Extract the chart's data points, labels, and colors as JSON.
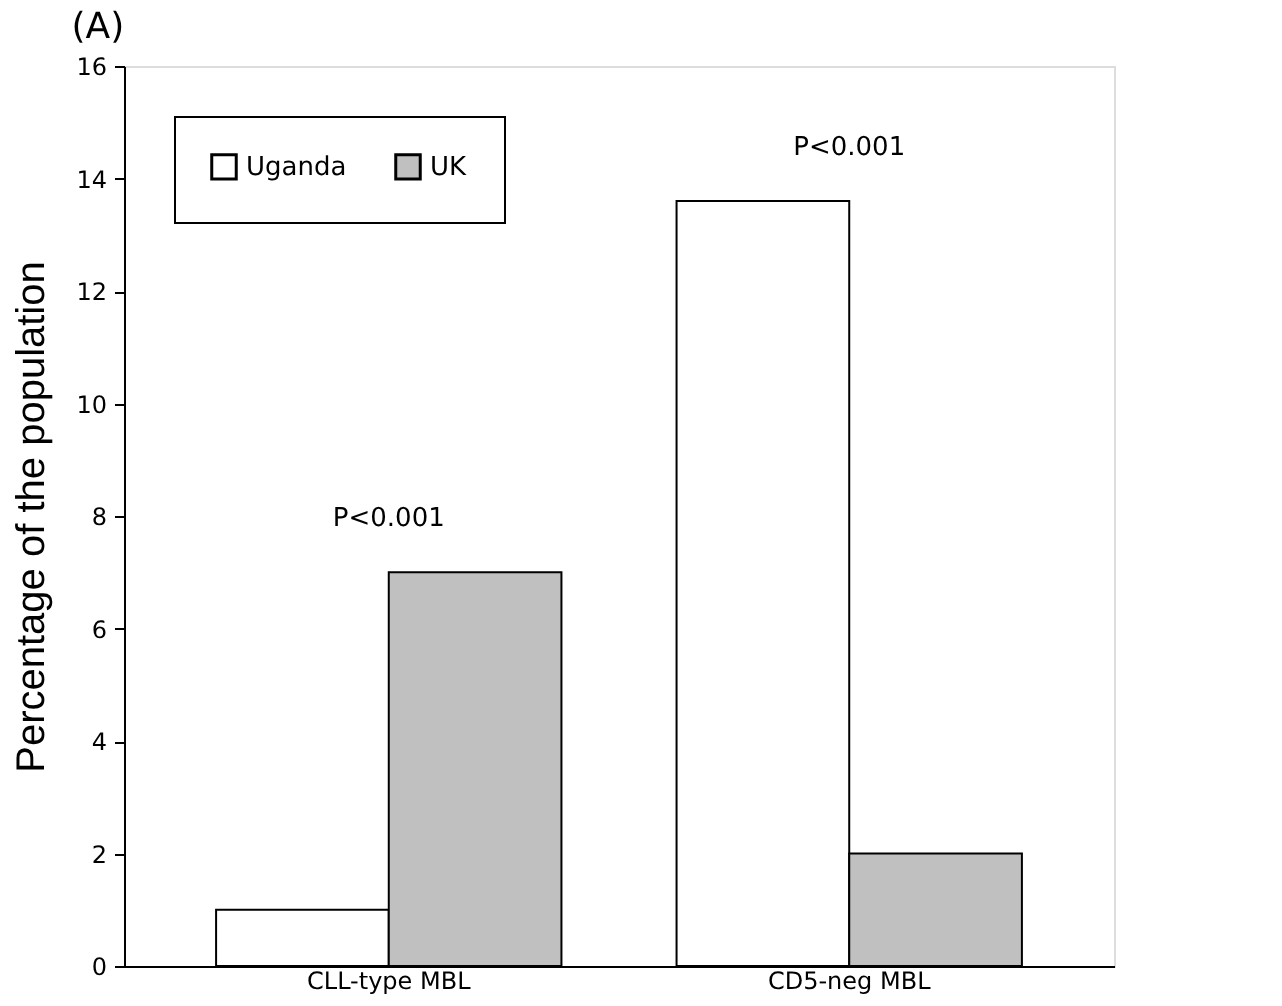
{
  "chart_data": {
    "type": "bar",
    "title": "(A)",
    "ylabel": "Percentage of the population",
    "categories": [
      "CLL-type MBL",
      "CD5-neg MBL"
    ],
    "series": [
      {
        "name": "Uganda",
        "color": "#ffffff",
        "values": [
          1,
          13.6
        ]
      },
      {
        "name": "UK",
        "color": "#c0c0c0",
        "values": [
          7,
          2
        ]
      }
    ],
    "ylim": [
      0,
      16
    ],
    "yticks": [
      0,
      2,
      4,
      6,
      8,
      10,
      12,
      14,
      16
    ],
    "grid": false,
    "legend": "top left",
    "annotations": [
      "P<0.001",
      "P<0.001"
    ]
  }
}
